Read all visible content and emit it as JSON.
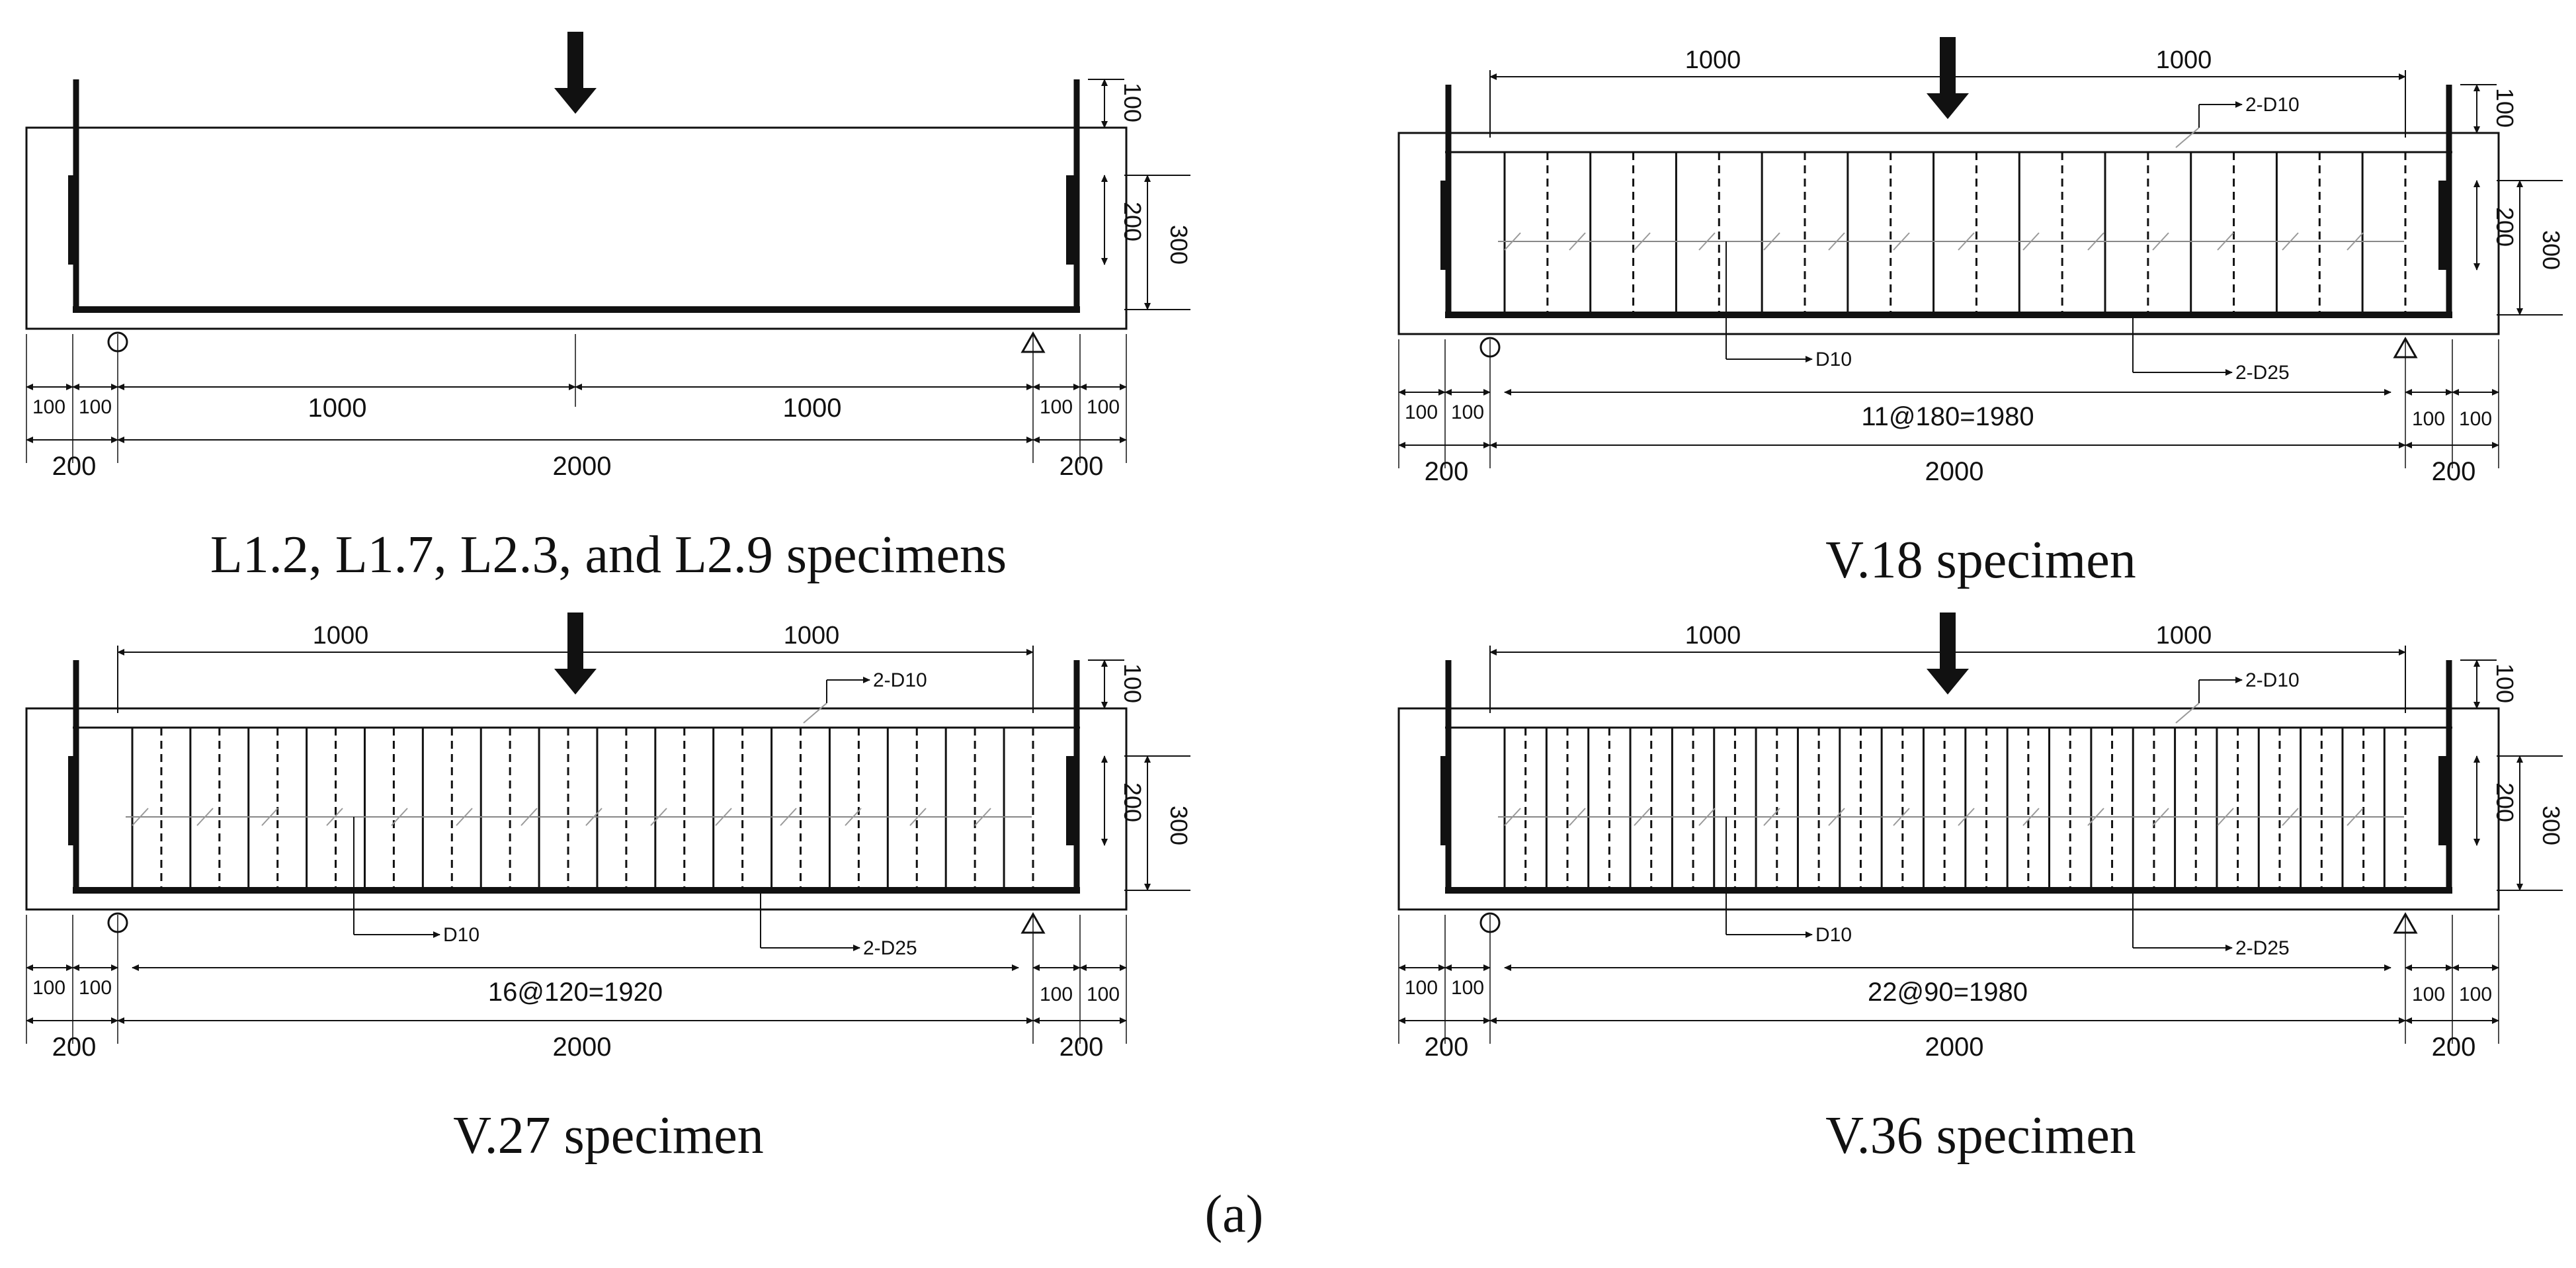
{
  "figure_label": "(a)",
  "panels": [
    {
      "id": "p1",
      "caption": "L1.2, L1.7, L2.3, and L2.9 specimens",
      "stirrups": 0,
      "top_dims": [],
      "bottom_row1": [
        "100",
        "100",
        "1000",
        "1000",
        "100",
        "100"
      ],
      "bottom_row2": [
        "200",
        "2000",
        "200"
      ],
      "right_dims": [
        "100",
        "200",
        "300"
      ],
      "rebar_labels": []
    },
    {
      "id": "p2",
      "caption": "V.18 specimen",
      "stirrups": 11,
      "top_dims": [
        "1000",
        "1000"
      ],
      "bottom_row1": [
        "100",
        "100",
        "11@180=1980",
        "100",
        "100"
      ],
      "bottom_row2": [
        "200",
        "2000",
        "200"
      ],
      "right_dims": [
        "100",
        "200",
        "300"
      ],
      "rebar_labels": [
        "2-D10",
        "D10",
        "2-D25"
      ]
    },
    {
      "id": "p3",
      "caption": "V.27 specimen",
      "stirrups": 16,
      "top_dims": [
        "1000",
        "1000"
      ],
      "bottom_row1": [
        "100",
        "100",
        "16@120=1920",
        "100",
        "100"
      ],
      "bottom_row2": [
        "200",
        "2000",
        "200"
      ],
      "right_dims": [
        "100",
        "200",
        "300"
      ],
      "rebar_labels": [
        "2-D10",
        "D10",
        "2-D25"
      ]
    },
    {
      "id": "p4",
      "caption": "V.36 specimen",
      "stirrups": 22,
      "top_dims": [
        "1000",
        "1000"
      ],
      "bottom_row1": [
        "100",
        "100",
        "22@90=1980",
        "100",
        "100"
      ],
      "bottom_row2": [
        "200",
        "2000",
        "200"
      ],
      "right_dims": [
        "100",
        "200",
        "300"
      ],
      "rebar_labels": [
        "2-D10",
        "D10",
        "2-D25"
      ]
    }
  ]
}
